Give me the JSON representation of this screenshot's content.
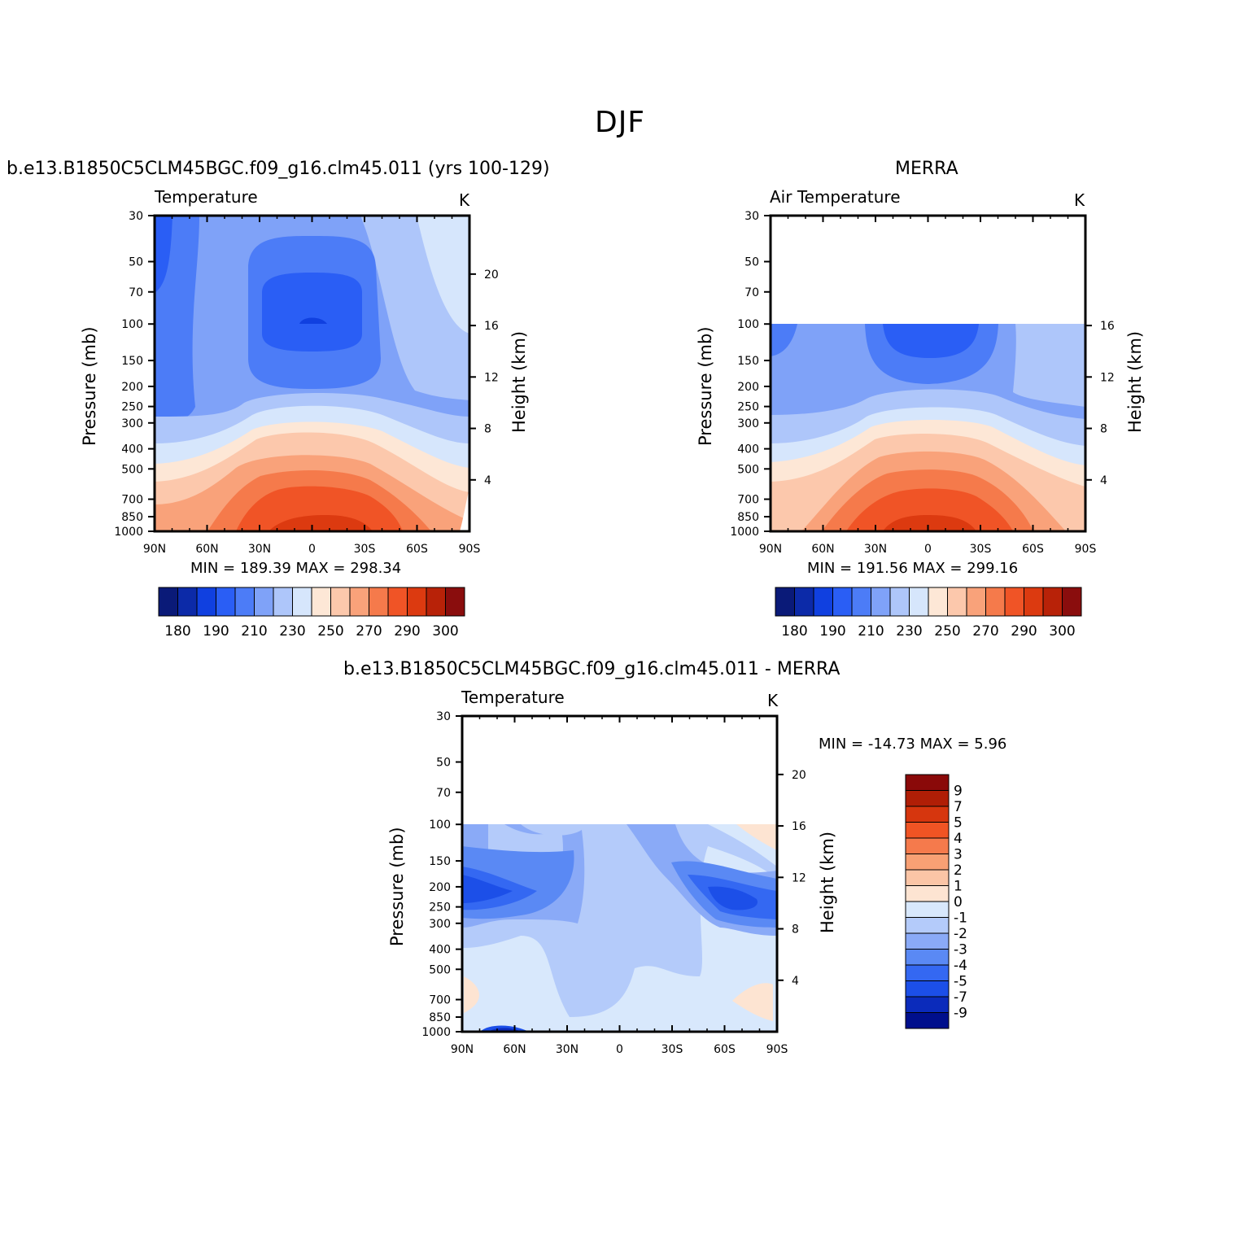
{
  "figure": {
    "title": "DJF",
    "colormap_abs": [
      "#0a1a78",
      "#0c2aa8",
      "#1040e0",
      "#2a5ef5",
      "#4c7cf7",
      "#7fa2f8",
      "#aec6fa",
      "#d6e6fc",
      "#fde7d6",
      "#fcc8ac",
      "#f9a27a",
      "#f57a4b",
      "#f05426",
      "#dc3a10",
      "#b82208",
      "#8a0d0d"
    ],
    "colormap_diff": [
      "#000f8c",
      "#0b2bbb",
      "#1c4fe8",
      "#3468f2",
      "#5a89f4",
      "#8aaaf7",
      "#b4cbfa",
      "#d8e8fc",
      "#fde4d2",
      "#fbc5a6",
      "#f8a074",
      "#f57a4c",
      "#f05424",
      "#d6360e",
      "#b01e06",
      "#8a0909"
    ]
  },
  "chart_data": [
    {
      "type": "heatmap",
      "id": "model",
      "title": "b.e13.B1850C5CLM45BGC.f09_g16.clm45.011 (yrs 100-129)",
      "left_string": "Temperature",
      "right_string": "K",
      "ylabel": "Pressure (mb)",
      "ylabel_right": "Height (km)",
      "pressure_ticks": [
        "30",
        "50",
        "70",
        "100",
        "150",
        "200",
        "250",
        "300",
        "400",
        "500",
        "700",
        "850",
        "1000"
      ],
      "height_ticks": [
        "20",
        "16",
        "12",
        "8",
        "4"
      ],
      "lat_ticks": [
        "90N",
        "60N",
        "30N",
        "0",
        "30S",
        "60S",
        "90S"
      ],
      "min_max_text": "MIN = 189.39   MAX = 298.34",
      "min": 189.39,
      "max": 298.34,
      "colorbar_levels": [
        "180",
        "190",
        "210",
        "230",
        "250",
        "270",
        "290",
        "300"
      ]
    },
    {
      "type": "heatmap",
      "id": "obs",
      "title": "MERRA",
      "left_string": "Air Temperature",
      "right_string": "K",
      "ylabel": "Pressure (mb)",
      "ylabel_right": "Height (km)",
      "pressure_ticks": [
        "30",
        "50",
        "70",
        "100",
        "150",
        "200",
        "250",
        "300",
        "400",
        "500",
        "700",
        "850",
        "1000"
      ],
      "height_ticks": [
        "16",
        "12",
        "8",
        "4"
      ],
      "lat_ticks": [
        "90N",
        "60N",
        "30N",
        "0",
        "30S",
        "60S",
        "90S"
      ],
      "min_max_text": "MIN = 191.56   MAX = 299.16",
      "min": 191.56,
      "max": 299.16,
      "data_top_pressure": 100,
      "colorbar_levels": [
        "180",
        "190",
        "210",
        "230",
        "250",
        "270",
        "290",
        "300"
      ]
    },
    {
      "type": "heatmap",
      "id": "diff",
      "title": "b.e13.B1850C5CLM45BGC.f09_g16.clm45.011 - MERRA",
      "left_string": "Temperature",
      "right_string": "K",
      "ylabel": "Pressure (mb)",
      "ylabel_right": "Height (km)",
      "pressure_ticks": [
        "30",
        "50",
        "70",
        "100",
        "150",
        "200",
        "250",
        "300",
        "400",
        "500",
        "700",
        "850",
        "1000"
      ],
      "height_ticks": [
        "20",
        "16",
        "12",
        "8",
        "4"
      ],
      "lat_ticks": [
        "90N",
        "60N",
        "30N",
        "0",
        "30S",
        "60S",
        "90S"
      ],
      "min_max_text": "MIN = -14.73   MAX =    5.96",
      "min": -14.73,
      "max": 5.96,
      "data_top_pressure": 100,
      "colorbar_levels": [
        "9",
        "7",
        "5",
        "4",
        "3",
        "2",
        "1",
        "0",
        "-1",
        "-2",
        "-3",
        "-4",
        "-5",
        "-7",
        "-9"
      ]
    }
  ]
}
